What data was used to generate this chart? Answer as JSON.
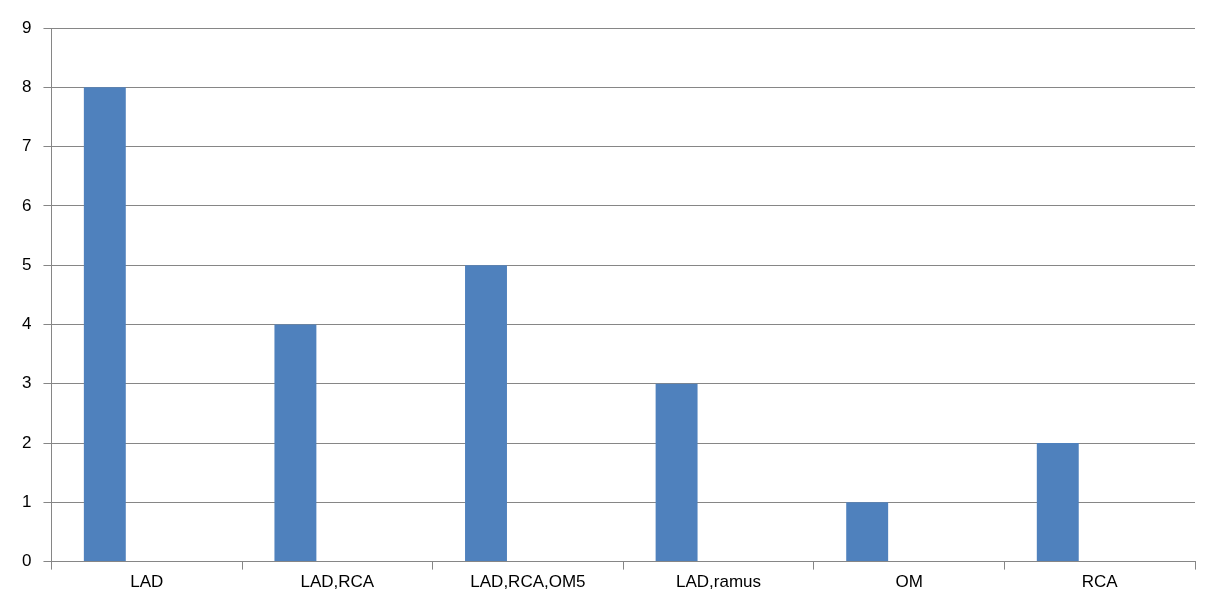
{
  "chart_data": {
    "type": "bar",
    "categories": [
      "LAD",
      "LAD,RCA",
      "LAD,RCA,OM5",
      "LAD,ramus",
      "OM",
      "RCA"
    ],
    "values": [
      8,
      4,
      5,
      3,
      1,
      2
    ],
    "color": "#4f81bd",
    "ylim": [
      0,
      9
    ],
    "yticks": [
      0,
      1,
      2,
      3,
      4,
      5,
      6,
      7,
      8,
      9
    ],
    "grid": "y",
    "legend": false
  }
}
